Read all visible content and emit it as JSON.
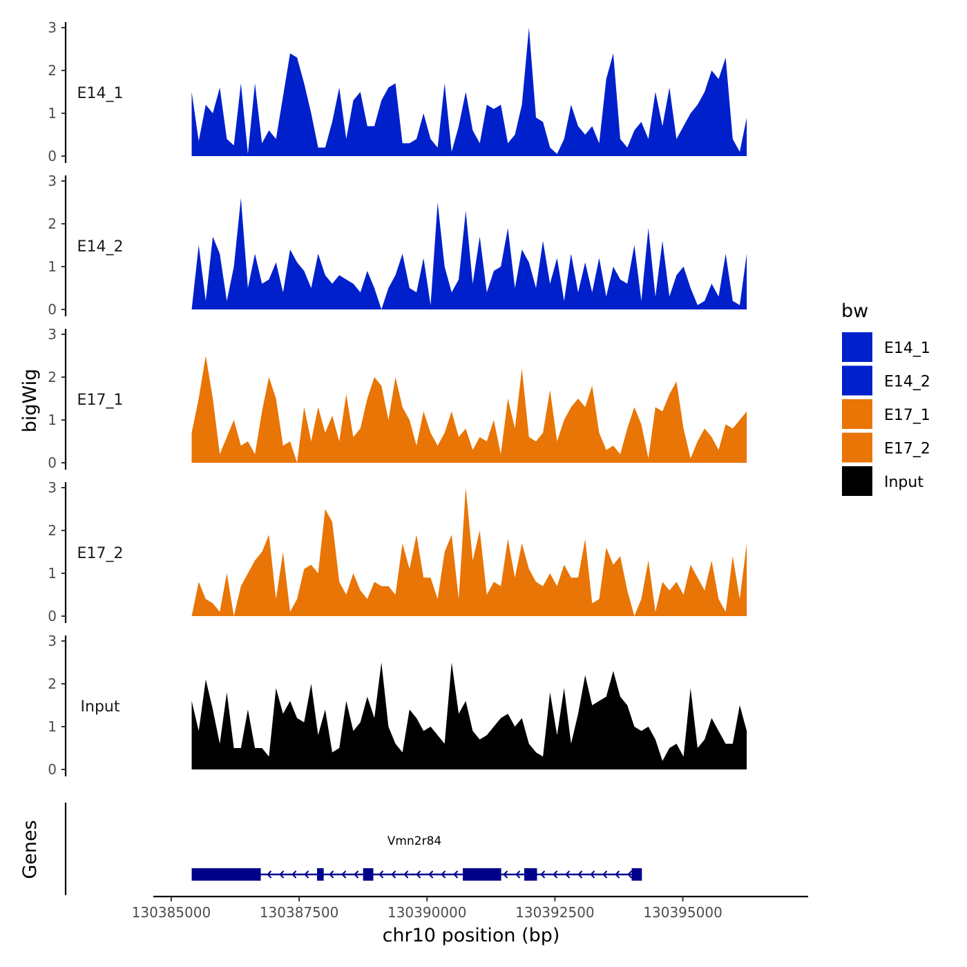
{
  "chart_data": {
    "type": "area",
    "ylabel": "bigWig",
    "xlabel": "chr10 position (bp)",
    "xlim": [
      130384650,
      130397450
    ],
    "region": [
      130385400,
      130396250
    ],
    "x_ticks": [
      130385000,
      130387500,
      130390000,
      130392500,
      130395000
    ],
    "x_tick_labels": [
      "130385000",
      "130387500",
      "130390000",
      "130392500",
      "130395000"
    ],
    "ylim": [
      0,
      3
    ],
    "y_ticks": [
      0,
      1,
      2,
      3
    ],
    "y_tick_labels": [
      "0",
      "1",
      "2",
      "3"
    ],
    "legend": {
      "title": "bw",
      "entries": [
        {
          "name": "E14_1",
          "color": "#0020CC"
        },
        {
          "name": "E14_2",
          "color": "#0020CC"
        },
        {
          "name": "E17_1",
          "color": "#E87505"
        },
        {
          "name": "E17_2",
          "color": "#E87505"
        },
        {
          "name": "Input",
          "color": "#000000"
        }
      ]
    },
    "series": [
      {
        "name": "E14_1",
        "color": "#0020CC",
        "start": 130385400,
        "end": 130396250,
        "values": [
          1.5,
          0.35,
          1.2,
          1.0,
          1.6,
          0.4,
          0.25,
          1.7,
          0.05,
          1.7,
          0.3,
          0.6,
          0.4,
          1.4,
          2.4,
          2.3,
          1.7,
          1.0,
          0.2,
          0.2,
          0.8,
          1.6,
          0.4,
          1.3,
          1.5,
          0.7,
          0.7,
          1.3,
          1.6,
          1.7,
          0.3,
          0.3,
          0.4,
          1.0,
          0.4,
          0.2,
          1.7,
          0.1,
          0.7,
          1.5,
          0.6,
          0.3,
          1.2,
          1.1,
          1.2,
          0.3,
          0.5,
          1.2,
          3.0,
          0.9,
          0.8,
          0.2,
          0.05,
          0.4,
          1.2,
          0.7,
          0.5,
          0.7,
          0.3,
          1.8,
          2.4,
          0.4,
          0.2,
          0.6,
          0.8,
          0.4,
          1.5,
          0.7,
          1.6,
          0.4,
          0.7,
          1.0,
          1.2,
          1.5,
          2.0,
          1.8,
          2.3,
          0.4,
          0.1,
          0.9
        ]
      },
      {
        "name": "E14_2",
        "color": "#0020CC",
        "start": 130385400,
        "end": 130396250,
        "values": [
          0.0,
          1.5,
          0.2,
          1.7,
          1.3,
          0.2,
          1.0,
          2.6,
          0.5,
          1.3,
          0.6,
          0.7,
          1.1,
          0.4,
          1.4,
          1.1,
          0.9,
          0.5,
          1.3,
          0.8,
          0.6,
          0.8,
          0.7,
          0.6,
          0.4,
          0.9,
          0.5,
          0.0,
          0.5,
          0.8,
          1.3,
          0.5,
          0.4,
          1.2,
          0.1,
          2.5,
          1.0,
          0.4,
          0.7,
          2.3,
          0.6,
          1.7,
          0.4,
          0.9,
          1.0,
          1.9,
          0.5,
          1.4,
          1.1,
          0.5,
          1.6,
          0.6,
          1.2,
          0.2,
          1.3,
          0.4,
          1.1,
          0.4,
          1.2,
          0.3,
          1.0,
          0.7,
          0.6,
          1.5,
          0.2,
          1.9,
          0.3,
          1.6,
          0.3,
          0.8,
          1.0,
          0.5,
          0.1,
          0.2,
          0.6,
          0.3,
          1.3,
          0.2,
          0.1,
          1.3
        ]
      },
      {
        "name": "E17_1",
        "color": "#E87505",
        "start": 130385400,
        "end": 130396250,
        "values": [
          0.7,
          1.5,
          2.5,
          1.5,
          0.2,
          0.6,
          1.0,
          0.4,
          0.5,
          0.2,
          1.2,
          2.0,
          1.5,
          0.4,
          0.5,
          0.0,
          1.3,
          0.5,
          1.3,
          0.7,
          1.1,
          0.5,
          1.6,
          0.6,
          0.8,
          1.5,
          2.0,
          1.8,
          1.0,
          2.0,
          1.3,
          1.0,
          0.4,
          1.2,
          0.7,
          0.4,
          0.7,
          1.2,
          0.6,
          0.8,
          0.3,
          0.6,
          0.5,
          1.0,
          0.2,
          1.5,
          0.8,
          2.2,
          0.6,
          0.5,
          0.7,
          1.7,
          0.5,
          1.0,
          1.3,
          1.5,
          1.3,
          1.8,
          0.7,
          0.3,
          0.4,
          0.2,
          0.8,
          1.3,
          0.9,
          0.1,
          1.3,
          1.2,
          1.6,
          1.9,
          0.8,
          0.1,
          0.5,
          0.8,
          0.6,
          0.3,
          0.9,
          0.8,
          1.0,
          1.2
        ]
      },
      {
        "name": "E17_2",
        "color": "#E87505",
        "start": 130385400,
        "end": 130396250,
        "values": [
          0.0,
          0.8,
          0.4,
          0.3,
          0.1,
          1.0,
          0.0,
          0.7,
          1.0,
          1.3,
          1.5,
          1.9,
          0.4,
          1.5,
          0.1,
          0.4,
          1.1,
          1.2,
          1.0,
          2.5,
          2.2,
          0.8,
          0.5,
          1.0,
          0.6,
          0.4,
          0.8,
          0.7,
          0.7,
          0.5,
          1.7,
          1.1,
          1.9,
          0.9,
          0.9,
          0.4,
          1.5,
          1.9,
          0.4,
          3.0,
          1.3,
          2.0,
          0.5,
          0.8,
          0.7,
          1.8,
          0.9,
          1.7,
          1.1,
          0.8,
          0.7,
          1.0,
          0.7,
          1.2,
          0.9,
          0.9,
          1.8,
          0.3,
          0.4,
          1.6,
          1.2,
          1.4,
          0.6,
          0.0,
          0.4,
          1.3,
          0.1,
          0.8,
          0.6,
          0.8,
          0.5,
          1.2,
          0.9,
          0.6,
          1.3,
          0.4,
          0.1,
          1.4,
          0.4,
          1.7
        ]
      },
      {
        "name": "Input",
        "color": "#000000",
        "start": 130385400,
        "end": 130396250,
        "values": [
          1.6,
          0.9,
          2.1,
          1.4,
          0.6,
          1.8,
          0.5,
          0.5,
          1.4,
          0.5,
          0.5,
          0.3,
          1.9,
          1.3,
          1.6,
          1.2,
          1.1,
          2.0,
          0.8,
          1.4,
          0.4,
          0.5,
          1.6,
          0.9,
          1.1,
          1.7,
          1.2,
          2.5,
          1.0,
          0.6,
          0.4,
          1.4,
          1.2,
          0.9,
          1.0,
          0.8,
          0.6,
          2.5,
          1.3,
          1.6,
          0.9,
          0.7,
          0.8,
          1.0,
          1.2,
          1.3,
          1.0,
          1.2,
          0.6,
          0.4,
          0.3,
          1.8,
          0.8,
          1.9,
          0.6,
          1.3,
          2.2,
          1.5,
          1.6,
          1.7,
          2.3,
          1.7,
          1.5,
          1.0,
          0.9,
          1.0,
          0.7,
          0.2,
          0.5,
          0.6,
          0.3,
          1.9,
          0.5,
          0.7,
          1.2,
          0.9,
          0.6,
          0.6,
          1.5,
          0.9
        ]
      }
    ],
    "genes_panel": {
      "label": "Genes",
      "gene_name": "Vmn2r84",
      "color": "#00008B",
      "strand": "-",
      "start": 130385400,
      "end": 130394200,
      "exons": [
        [
          130385400,
          130386750
        ],
        [
          130387850,
          130387980
        ],
        [
          130388750,
          130388950
        ],
        [
          130390700,
          130391450
        ],
        [
          130391900,
          130392150
        ],
        [
          130394000,
          130394200
        ]
      ]
    }
  }
}
